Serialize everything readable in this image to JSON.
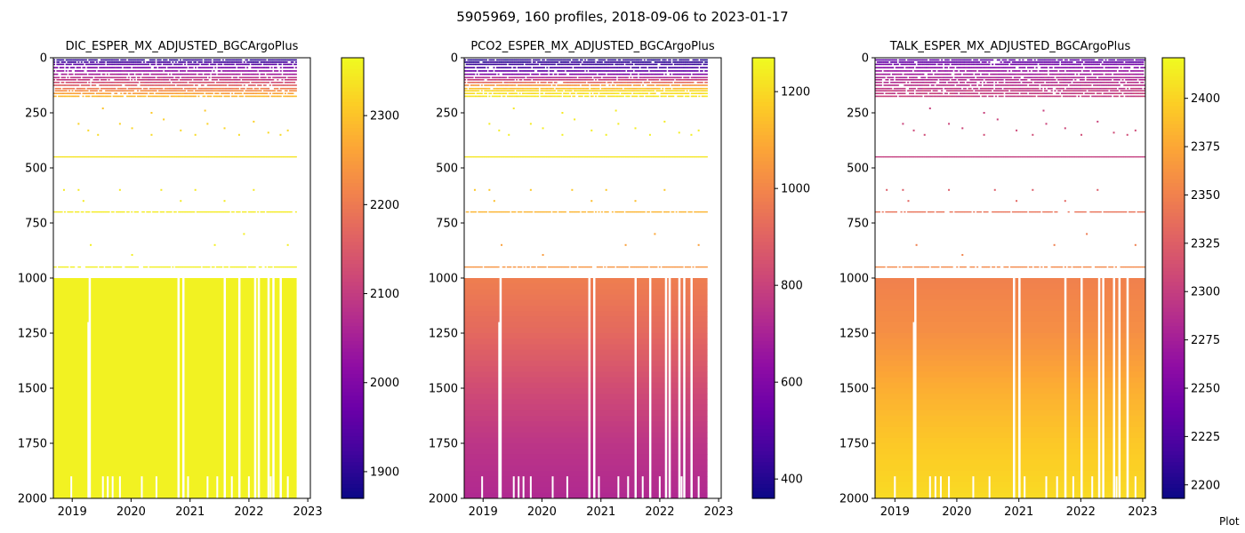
{
  "figure": {
    "suptitle": "5905969, 160 profiles, 2018-09-06 to 2023-01-17",
    "corner_text": "Plot"
  },
  "colors": {
    "colormap": "plasma",
    "stops": [
      "#0d0887",
      "#41049d",
      "#6a00a8",
      "#8f0da4",
      "#b12a90",
      "#cc4778",
      "#e16462",
      "#f2844b",
      "#fca636",
      "#fcce25",
      "#f0f921"
    ],
    "axis": "#000000",
    "missing": "#ffffff"
  },
  "chart_data": [
    {
      "type": "heatmap",
      "title": "DIC_ESPER_MX_ADJUSTED_BGCArgoPlus",
      "xlabel": "",
      "ylabel": "",
      "xlim": [
        "2018-09-06",
        "2023-01-17"
      ],
      "ylim": [
        2000,
        0
      ],
      "xticks": [
        "2019",
        "2020",
        "2021",
        "2022",
        "2023"
      ],
      "yticks": [
        0,
        250,
        500,
        750,
        1000,
        1250,
        1500,
        1750,
        2000
      ],
      "data_extent_x": [
        "2018-09-06",
        "2022-10-24"
      ],
      "colorbar": {
        "range": [
          1870,
          2365
        ],
        "ticks": [
          1900,
          2000,
          2100,
          2200,
          2300
        ]
      },
      "depth_profile": [
        {
          "depth": 10,
          "value": 1900
        },
        {
          "depth": 20,
          "value": 1920
        },
        {
          "depth": 30,
          "value": 1950
        },
        {
          "depth": 50,
          "value": 2000
        },
        {
          "depth": 75,
          "value": 2050
        },
        {
          "depth": 100,
          "value": 2100
        },
        {
          "depth": 125,
          "value": 2160
        },
        {
          "depth": 150,
          "value": 2230
        },
        {
          "depth": 175,
          "value": 2290
        },
        {
          "depth": 300,
          "value": 2320
        },
        {
          "depth": 350,
          "value": 2330
        },
        {
          "depth": 450,
          "value": 2340
        },
        {
          "depth": 700,
          "value": 2350
        },
        {
          "depth": 950,
          "value": 2355
        },
        {
          "depth": 1000,
          "value": 2357
        },
        {
          "depth": 2000,
          "value": 2357
        }
      ]
    },
    {
      "type": "heatmap",
      "title": "PCO2_ESPER_MX_ADJUSTED_BGCArgoPlus",
      "xlabel": "",
      "ylabel": "",
      "xlim": [
        "2018-09-06",
        "2023-01-17"
      ],
      "ylim": [
        2000,
        0
      ],
      "xticks": [
        "2019",
        "2020",
        "2021",
        "2022",
        "2023"
      ],
      "yticks": [
        0,
        250,
        500,
        750,
        1000,
        1250,
        1500,
        1750,
        2000
      ],
      "data_extent_x": [
        "2018-09-06",
        "2022-10-24"
      ],
      "colorbar": {
        "range": [
          360,
          1270
        ],
        "ticks": [
          400,
          600,
          800,
          1000,
          1200
        ]
      },
      "depth_profile": [
        {
          "depth": 10,
          "value": 400
        },
        {
          "depth": 20,
          "value": 420
        },
        {
          "depth": 30,
          "value": 440
        },
        {
          "depth": 50,
          "value": 480
        },
        {
          "depth": 75,
          "value": 600
        },
        {
          "depth": 100,
          "value": 800
        },
        {
          "depth": 125,
          "value": 1050
        },
        {
          "depth": 150,
          "value": 1200
        },
        {
          "depth": 175,
          "value": 1230
        },
        {
          "depth": 300,
          "value": 1240
        },
        {
          "depth": 350,
          "value": 1250
        },
        {
          "depth": 450,
          "value": 1230
        },
        {
          "depth": 700,
          "value": 1120
        },
        {
          "depth": 950,
          "value": 1040
        },
        {
          "depth": 1000,
          "value": 980
        },
        {
          "depth": 1250,
          "value": 920
        },
        {
          "depth": 1500,
          "value": 830
        },
        {
          "depth": 1750,
          "value": 760
        },
        {
          "depth": 2000,
          "value": 720
        }
      ]
    },
    {
      "type": "heatmap",
      "title": "TALK_ESPER_MX_ADJUSTED_BGCArgoPlus",
      "xlabel": "",
      "ylabel": "",
      "xlim": [
        "2018-09-06",
        "2023-01-17"
      ],
      "ylim": [
        2000,
        0
      ],
      "xticks": [
        "2019",
        "2020",
        "2021",
        "2022",
        "2023"
      ],
      "yticks": [
        0,
        250,
        500,
        750,
        1000,
        1250,
        1500,
        1750,
        2000
      ],
      "data_extent_x": [
        "2018-09-06",
        "2023-01-17"
      ],
      "colorbar": {
        "range": [
          2193,
          2421
        ],
        "ticks": [
          2200,
          2225,
          2250,
          2275,
          2300,
          2325,
          2350,
          2375,
          2400
        ]
      },
      "depth_profile": [
        {
          "depth": 10,
          "value": 2230
        },
        {
          "depth": 20,
          "value": 2235
        },
        {
          "depth": 30,
          "value": 2245
        },
        {
          "depth": 50,
          "value": 2260
        },
        {
          "depth": 75,
          "value": 2275
        },
        {
          "depth": 100,
          "value": 2285
        },
        {
          "depth": 125,
          "value": 2290
        },
        {
          "depth": 150,
          "value": 2300
        },
        {
          "depth": 175,
          "value": 2300
        },
        {
          "depth": 300,
          "value": 2305
        },
        {
          "depth": 350,
          "value": 2310
        },
        {
          "depth": 450,
          "value": 2300
        },
        {
          "depth": 700,
          "value": 2340
        },
        {
          "depth": 950,
          "value": 2355
        },
        {
          "depth": 1000,
          "value": 2350
        },
        {
          "depth": 1250,
          "value": 2360
        },
        {
          "depth": 1500,
          "value": 2380
        },
        {
          "depth": 1750,
          "value": 2395
        },
        {
          "depth": 2000,
          "value": 2405
        }
      ]
    }
  ]
}
